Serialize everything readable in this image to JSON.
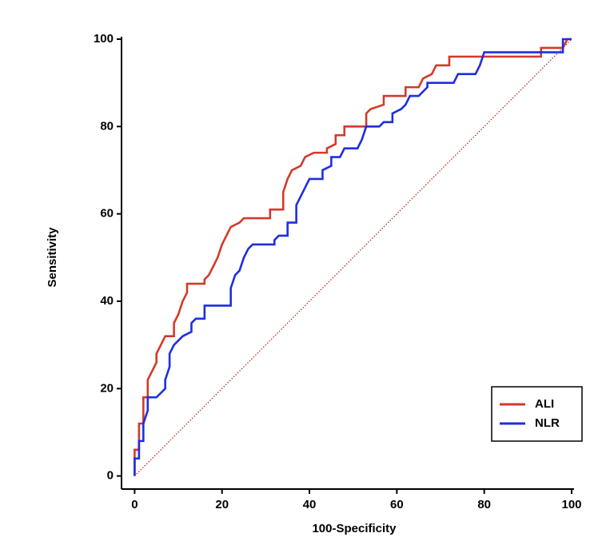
{
  "chart_data": {
    "type": "line",
    "x_label": "100-Specificity",
    "y_label": "Sensitivity",
    "xlim": [
      -3,
      100
    ],
    "ylim": [
      -3,
      100
    ],
    "xticks": [
      0,
      20,
      40,
      60,
      80,
      100
    ],
    "yticks": [
      0,
      20,
      40,
      60,
      80,
      100
    ],
    "legend": "lower right",
    "series": [
      {
        "name": "ALI",
        "color": "#d23a2a",
        "x": [
          0,
          0,
          1,
          1,
          2,
          2,
          3,
          3,
          4,
          5,
          5,
          6,
          7,
          9,
          9,
          10,
          11,
          12,
          12,
          16,
          16,
          17,
          18,
          19,
          20,
          21,
          22,
          24,
          25,
          31,
          31,
          34,
          34,
          35,
          36,
          38,
          39,
          41,
          44,
          44,
          46,
          46,
          48,
          48,
          53,
          53,
          54,
          57,
          57,
          62,
          62,
          65,
          66,
          68,
          69,
          72,
          72,
          74,
          93,
          93,
          98,
          99,
          100
        ],
        "values": [
          0,
          6,
          6,
          12,
          12,
          18,
          18,
          22,
          24,
          26,
          28,
          30,
          32,
          32,
          35,
          37,
          40,
          42,
          44,
          44,
          45,
          46,
          48,
          50,
          53,
          55,
          57,
          58,
          59,
          59,
          61,
          61,
          65,
          68,
          70,
          71,
          73,
          74,
          74,
          75,
          76,
          78,
          78,
          80,
          80,
          83,
          84,
          85,
          87,
          87,
          89,
          89,
          91,
          92,
          94,
          94,
          96,
          96,
          96,
          98,
          98,
          100,
          100
        ]
      },
      {
        "name": "NLR",
        "color": "#1f2ee0",
        "x": [
          0,
          0,
          1,
          1,
          2,
          2,
          3,
          3,
          5,
          6,
          7,
          7,
          8,
          8,
          9,
          10,
          11,
          13,
          13,
          14,
          16,
          16,
          22,
          22,
          23,
          24,
          25,
          26,
          27,
          32,
          32,
          33,
          35,
          35,
          37,
          37,
          38,
          39,
          40,
          43,
          43,
          45,
          45,
          47,
          48,
          51,
          52,
          53,
          56,
          57,
          59,
          59,
          61,
          62,
          63,
          65,
          67,
          67,
          73,
          74,
          78,
          79,
          80,
          98,
          98,
          100
        ],
        "values": [
          0,
          4,
          4,
          8,
          8,
          12,
          15,
          18,
          18,
          19,
          20,
          22,
          25,
          28,
          30,
          31,
          32,
          33,
          35,
          36,
          36,
          39,
          39,
          43,
          46,
          47,
          50,
          52,
          53,
          53,
          54,
          55,
          55,
          58,
          58,
          62,
          64,
          66,
          68,
          68,
          70,
          71,
          73,
          73,
          75,
          75,
          77,
          80,
          80,
          81,
          81,
          83,
          84,
          85,
          87,
          87,
          89,
          90,
          90,
          92,
          92,
          94,
          97,
          97,
          100,
          100
        ]
      }
    ],
    "reference": {
      "color": "#b02020",
      "x": [
        0,
        100
      ],
      "values": [
        0,
        100
      ]
    }
  }
}
